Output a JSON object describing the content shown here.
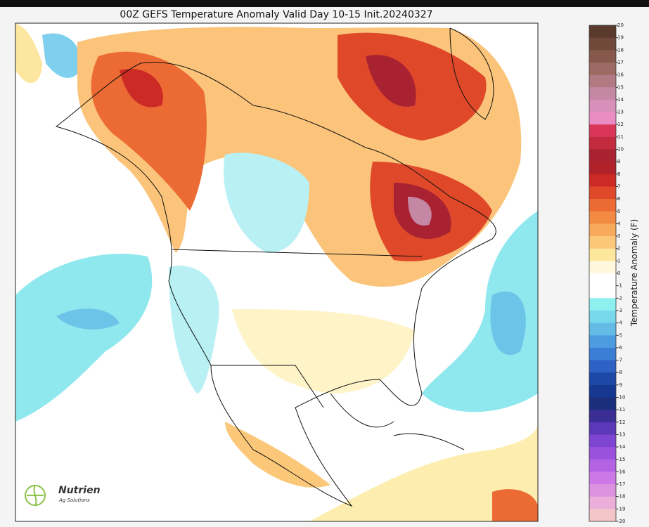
{
  "title": "00Z GEFS Temperature Anomaly Valid Day 10-15 Init.20240327",
  "colorbar": {
    "label": "Temperature Anomaly (F)",
    "ticks": [
      20,
      19,
      18,
      17,
      16,
      15,
      14,
      13,
      12,
      11,
      10,
      9,
      8,
      7,
      6,
      5,
      4,
      3,
      2,
      1,
      0,
      -1,
      -2,
      -3,
      -4,
      -5,
      -6,
      -7,
      -8,
      -9,
      -10,
      -11,
      -12,
      -13,
      -14,
      -15,
      -16,
      -17,
      -18,
      -19,
      -20
    ],
    "colors": [
      "#5a3a2c",
      "#70493b",
      "#86594c",
      "#9c6a62",
      "#b27a82",
      "#c487a4",
      "#d88fba",
      "#ec8cc4",
      "#d9365a",
      "#c42a3e",
      "#a82232",
      "#b0212a",
      "#cc2a24",
      "#e0482a",
      "#ec6a34",
      "#f28a44",
      "#f7aa5c",
      "#fbc87a",
      "#fde79c",
      "#fff8dc",
      "#ffffff",
      "#ffffff",
      "#8ff0f0",
      "#78d8ec",
      "#63bbe6",
      "#4e9ce0",
      "#3c7ed6",
      "#2d61c4",
      "#1e48a8",
      "#163890",
      "#1a2f7c",
      "#3a2d94",
      "#5a38b8",
      "#7e44d2",
      "#9a52dc",
      "#b462e4",
      "#cc78e6",
      "#dd92e0",
      "#eaaed8",
      "#f3c6c8"
    ]
  },
  "logo": {
    "name": "Nutrien",
    "tagline": "Ag Solutions"
  }
}
